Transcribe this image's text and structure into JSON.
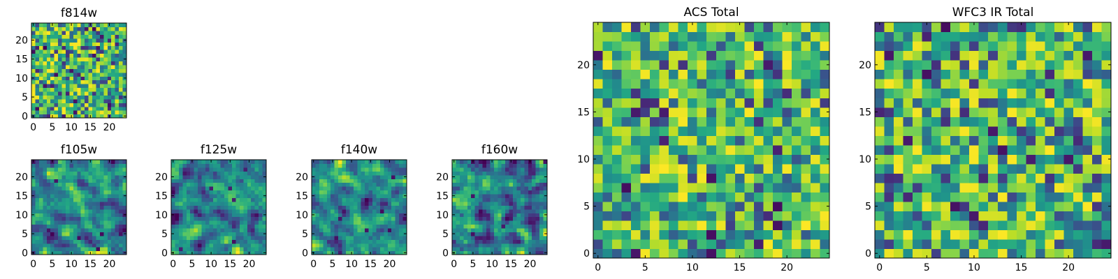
{
  "chart_data": [
    {
      "type": "heatmap",
      "title": "f814w",
      "colormap": "viridis",
      "grid_size": [
        25,
        25
      ],
      "xlim": [
        0,
        24
      ],
      "ylim": [
        0,
        24
      ],
      "xticks": [
        0,
        5,
        10,
        15,
        20
      ],
      "yticks": [
        0,
        5,
        10,
        15,
        20
      ],
      "noise_texture": "fine",
      "seed": 814
    },
    {
      "type": "heatmap",
      "title": "f105w",
      "colormap": "viridis",
      "grid_size": [
        25,
        25
      ],
      "xlim": [
        0,
        24
      ],
      "ylim": [
        0,
        24
      ],
      "xticks": [
        0,
        5,
        10,
        15,
        20
      ],
      "yticks": [
        0,
        5,
        10,
        15,
        20
      ],
      "noise_texture": "smooth",
      "seed": 105
    },
    {
      "type": "heatmap",
      "title": "f125w",
      "colormap": "viridis",
      "grid_size": [
        25,
        25
      ],
      "xlim": [
        0,
        24
      ],
      "ylim": [
        0,
        24
      ],
      "xticks": [
        0,
        5,
        10,
        15,
        20
      ],
      "yticks": [
        0,
        5,
        10,
        15,
        20
      ],
      "noise_texture": "smooth",
      "seed": 125
    },
    {
      "type": "heatmap",
      "title": "f140w",
      "colormap": "viridis",
      "grid_size": [
        25,
        25
      ],
      "xlim": [
        0,
        24
      ],
      "ylim": [
        0,
        24
      ],
      "xticks": [
        0,
        5,
        10,
        15,
        20
      ],
      "yticks": [
        0,
        5,
        10,
        15,
        20
      ],
      "noise_texture": "smooth",
      "seed": 140
    },
    {
      "type": "heatmap",
      "title": "f160w",
      "colormap": "viridis",
      "grid_size": [
        25,
        25
      ],
      "xlim": [
        0,
        24
      ],
      "ylim": [
        0,
        24
      ],
      "xticks": [
        0,
        5,
        10,
        15,
        20
      ],
      "yticks": [
        0,
        5,
        10,
        15,
        20
      ],
      "noise_texture": "smooth",
      "seed": 160
    },
    {
      "type": "heatmap",
      "title": "ACS Total",
      "colormap": "viridis",
      "grid_size": [
        25,
        25
      ],
      "xlim": [
        0,
        24
      ],
      "ylim": [
        0,
        24
      ],
      "xticks": [
        0,
        5,
        10,
        15,
        20
      ],
      "yticks": [
        0,
        5,
        10,
        15,
        20
      ],
      "noise_texture": "coarse",
      "seed": 1001
    },
    {
      "type": "heatmap",
      "title": "WFC3 IR Total",
      "colormap": "viridis",
      "grid_size": [
        25,
        25
      ],
      "xlim": [
        0,
        24
      ],
      "ylim": [
        0,
        24
      ],
      "xticks": [
        0,
        5,
        10,
        15,
        20
      ],
      "yticks": [
        0,
        5,
        10,
        15,
        20
      ],
      "noise_texture": "coarse",
      "seed": 2002
    }
  ]
}
